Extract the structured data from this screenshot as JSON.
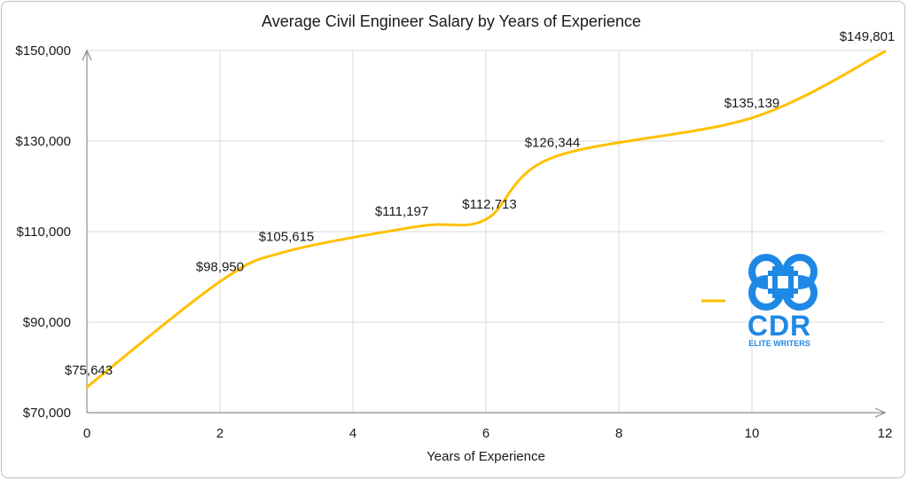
{
  "chart_data": {
    "type": "line",
    "title": "Average Civil Engineer Salary by Years of Experience",
    "xlabel": "Years of Experience",
    "ylabel": "",
    "xlim": [
      0,
      12
    ],
    "ylim": [
      70000,
      150000
    ],
    "x_ticks": [
      "0",
      "2",
      "4",
      "6",
      "8",
      "10",
      "12"
    ],
    "y_ticks": [
      "$70,000",
      "$90,000",
      "$110,000",
      "$130,000",
      "$150,000"
    ],
    "grid": true,
    "smooth": true,
    "series": [
      {
        "color": "#FFC000",
        "points": [
          {
            "x": 0,
            "y": 75643,
            "label": "$75,643"
          },
          {
            "x": 2,
            "y": 98950,
            "label": "$98,950"
          },
          {
            "x": 3,
            "y": 105615,
            "label": "$105,615"
          },
          {
            "x": 5,
            "y": 111197,
            "label": "$111,197"
          },
          {
            "x": 6,
            "y": 112713,
            "label": "$112,713"
          },
          {
            "x": 7,
            "y": 126344,
            "label": "$126,344"
          },
          {
            "x": 10,
            "y": 135139,
            "label": "$135,139"
          },
          {
            "x": 12,
            "y": 149801,
            "label": "$149,801"
          }
        ]
      }
    ],
    "legend_position": "right"
  },
  "logo": {
    "name": "CDR",
    "tagline": "ELITE WRITERS",
    "color": "#1E88E5"
  }
}
